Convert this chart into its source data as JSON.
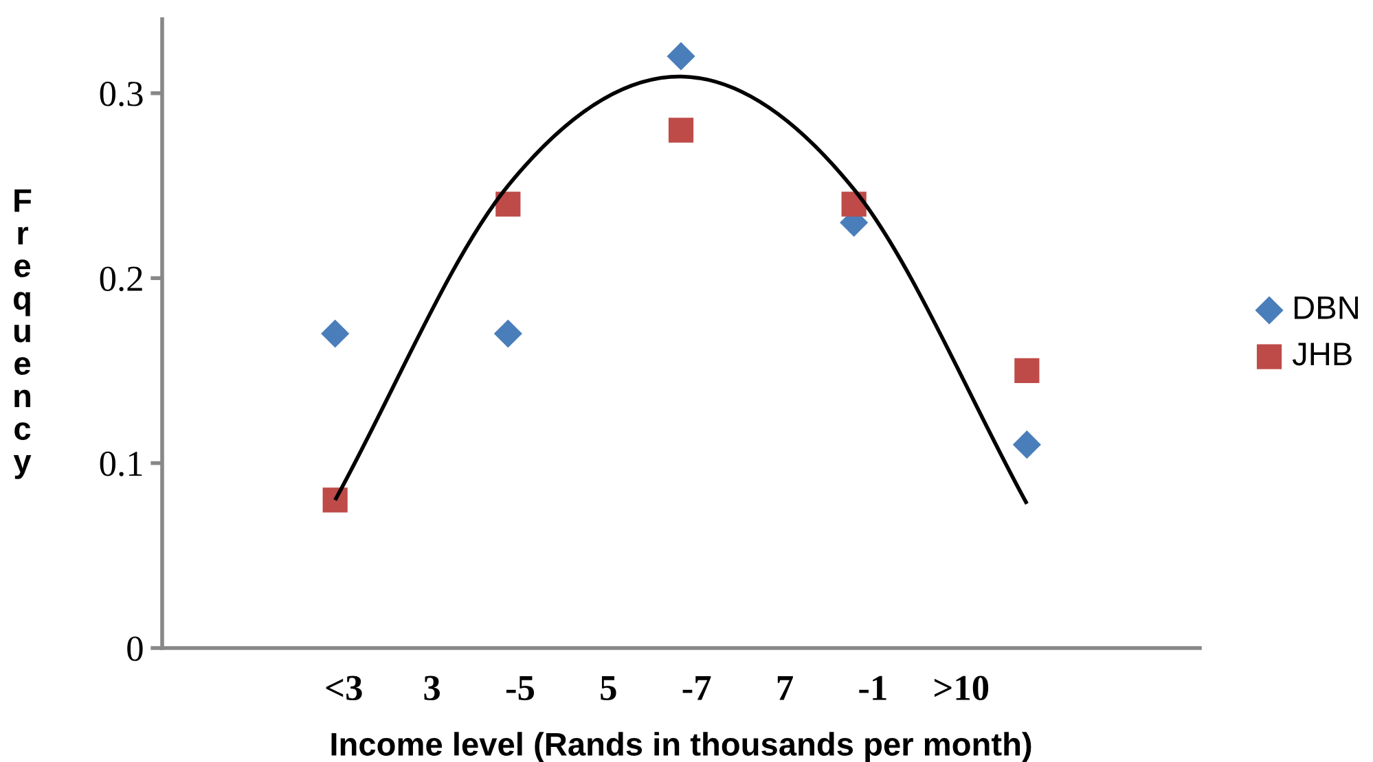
{
  "chart_data": {
    "type": "scatter",
    "xlabel": "Income level (Rands in thousands per month)",
    "ylabel": "Frequency",
    "ylim": [
      0,
      0.34
    ],
    "yticks": [
      0,
      0.1,
      0.2,
      0.3
    ],
    "categories": [
      null,
      null,
      null,
      null,
      null
    ],
    "annotations": [
      "<3",
      "3",
      "-5",
      "5",
      "-7",
      "7",
      "-1",
      ">10"
    ],
    "grid": false,
    "legend": "right",
    "series": [
      {
        "name": "DBN",
        "color": "#4a7ebb",
        "marker": "diamond",
        "values": [
          0.17,
          0.17,
          0.32,
          0.23,
          0.11
        ]
      },
      {
        "name": "JHB",
        "color": "#be4b48",
        "marker": "square",
        "values": [
          0.08,
          0.24,
          0.28,
          0.24,
          0.15
        ]
      },
      {
        "type": "line",
        "color": "#000000",
        "marker": "none",
        "line_style": "solid",
        "values": [
          0.08,
          0.25,
          0.309,
          0.248,
          0.078
        ]
      }
    ]
  }
}
